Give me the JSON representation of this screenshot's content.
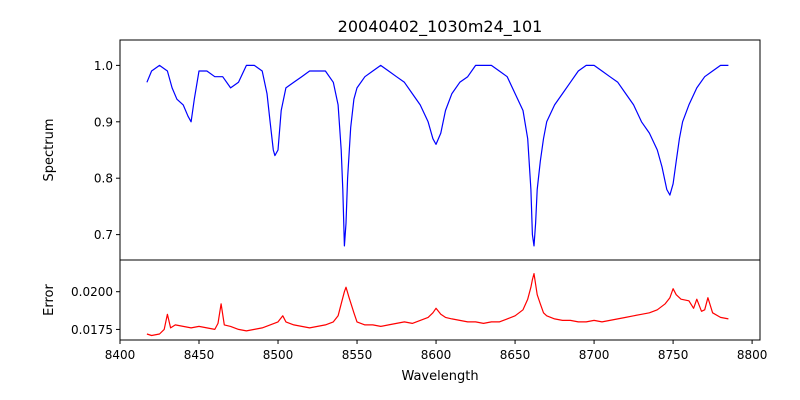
{
  "chart_data": [
    {
      "type": "line",
      "title": "20040402_1030m24_101",
      "xlabel": "",
      "ylabel": "Spectrum",
      "xlim": [
        8400,
        8805
      ],
      "ylim": [
        0.655,
        1.045
      ],
      "yticks": [
        0.7,
        0.8,
        0.9,
        1.0
      ],
      "ytick_labels": [
        "0.7",
        "0.8",
        "0.9",
        "1.0"
      ],
      "grid": false,
      "series": [
        {
          "color": "#0000ff",
          "x": [
            8417,
            8420,
            8425,
            8430,
            8433,
            8436,
            8440,
            8443,
            8445,
            8447,
            8450,
            8455,
            8460,
            8465,
            8470,
            8475,
            8480,
            8485,
            8490,
            8493,
            8495,
            8497,
            8498,
            8500,
            8502,
            8505,
            8510,
            8515,
            8520,
            8525,
            8530,
            8535,
            8538,
            8540,
            8541,
            8542,
            8543,
            8544,
            8546,
            8548,
            8550,
            8555,
            8560,
            8565,
            8570,
            8575,
            8580,
            8585,
            8590,
            8595,
            8598,
            8600,
            8603,
            8606,
            8610,
            8615,
            8620,
            8625,
            8630,
            8635,
            8640,
            8645,
            8650,
            8655,
            8658,
            8660,
            8661,
            8662,
            8663,
            8664,
            8666,
            8668,
            8670,
            8675,
            8680,
            8685,
            8690,
            8695,
            8700,
            8705,
            8710,
            8715,
            8720,
            8725,
            8730,
            8735,
            8740,
            8743,
            8746,
            8748,
            8750,
            8752,
            8754,
            8756,
            8760,
            8765,
            8770,
            8775,
            8780,
            8785
          ],
          "values": [
            0.97,
            0.99,
            1.0,
            0.99,
            0.96,
            0.94,
            0.93,
            0.91,
            0.9,
            0.94,
            0.99,
            0.99,
            0.98,
            0.98,
            0.96,
            0.97,
            1.0,
            1.0,
            0.99,
            0.95,
            0.9,
            0.85,
            0.84,
            0.85,
            0.92,
            0.96,
            0.97,
            0.98,
            0.99,
            0.99,
            0.99,
            0.97,
            0.93,
            0.85,
            0.78,
            0.68,
            0.72,
            0.8,
            0.89,
            0.94,
            0.96,
            0.98,
            0.99,
            1.0,
            0.99,
            0.98,
            0.97,
            0.95,
            0.93,
            0.9,
            0.87,
            0.86,
            0.88,
            0.92,
            0.95,
            0.97,
            0.98,
            1.0,
            1.0,
            1.0,
            0.99,
            0.98,
            0.95,
            0.92,
            0.87,
            0.78,
            0.7,
            0.68,
            0.72,
            0.78,
            0.83,
            0.87,
            0.9,
            0.93,
            0.95,
            0.97,
            0.99,
            1.0,
            1.0,
            0.99,
            0.98,
            0.97,
            0.95,
            0.93,
            0.9,
            0.88,
            0.85,
            0.82,
            0.78,
            0.77,
            0.79,
            0.83,
            0.87,
            0.9,
            0.93,
            0.96,
            0.98,
            0.99,
            1.0,
            1.0
          ]
        }
      ]
    },
    {
      "type": "line",
      "title": "",
      "xlabel": "Wavelength",
      "ylabel": "Error",
      "xlim": [
        8400,
        8805
      ],
      "ylim": [
        0.0168,
        0.0221
      ],
      "xticks": [
        8400,
        8450,
        8500,
        8550,
        8600,
        8650,
        8700,
        8750,
        8800
      ],
      "xtick_labels": [
        "8400",
        "8450",
        "8500",
        "8550",
        "8600",
        "8650",
        "8700",
        "8750",
        "8800"
      ],
      "yticks": [
        0.0175,
        0.02
      ],
      "ytick_labels": [
        "0.0175",
        "0.0200"
      ],
      "grid": false,
      "series": [
        {
          "color": "#ff0000",
          "x": [
            8417,
            8420,
            8425,
            8428,
            8430,
            8432,
            8435,
            8440,
            8445,
            8450,
            8455,
            8460,
            8462,
            8464,
            8466,
            8470,
            8475,
            8480,
            8485,
            8490,
            8495,
            8500,
            8503,
            8505,
            8510,
            8515,
            8520,
            8525,
            8530,
            8535,
            8538,
            8540,
            8542,
            8543,
            8545,
            8548,
            8550,
            8555,
            8560,
            8565,
            8570,
            8575,
            8580,
            8585,
            8590,
            8595,
            8598,
            8600,
            8603,
            8606,
            8610,
            8615,
            8620,
            8625,
            8630,
            8635,
            8640,
            8645,
            8650,
            8655,
            8658,
            8660,
            8661,
            8662,
            8663,
            8664,
            8666,
            8668,
            8670,
            8675,
            8680,
            8685,
            8690,
            8695,
            8700,
            8705,
            8710,
            8715,
            8720,
            8725,
            8730,
            8735,
            8740,
            8745,
            8748,
            8750,
            8752,
            8755,
            8760,
            8763,
            8765,
            8768,
            8770,
            8772,
            8775,
            8780,
            8785
          ],
          "values": [
            0.0172,
            0.0171,
            0.0172,
            0.0175,
            0.0185,
            0.0176,
            0.0178,
            0.0177,
            0.0176,
            0.0177,
            0.0176,
            0.0175,
            0.0179,
            0.0192,
            0.0178,
            0.0177,
            0.0175,
            0.0174,
            0.0175,
            0.0176,
            0.0178,
            0.018,
            0.0184,
            0.018,
            0.0178,
            0.0177,
            0.0176,
            0.0177,
            0.0178,
            0.018,
            0.0184,
            0.0192,
            0.02,
            0.0203,
            0.0196,
            0.0186,
            0.018,
            0.0178,
            0.0178,
            0.0177,
            0.0178,
            0.0179,
            0.018,
            0.0179,
            0.0181,
            0.0183,
            0.0186,
            0.0189,
            0.0185,
            0.0183,
            0.0182,
            0.0181,
            0.018,
            0.018,
            0.0179,
            0.018,
            0.018,
            0.0182,
            0.0184,
            0.0188,
            0.0195,
            0.0203,
            0.0208,
            0.0212,
            0.0205,
            0.0198,
            0.0192,
            0.0186,
            0.0184,
            0.0182,
            0.0181,
            0.0181,
            0.018,
            0.018,
            0.0181,
            0.018,
            0.0181,
            0.0182,
            0.0183,
            0.0184,
            0.0185,
            0.0186,
            0.0188,
            0.0192,
            0.0196,
            0.0202,
            0.0198,
            0.0195,
            0.0194,
            0.0189,
            0.0195,
            0.0187,
            0.0188,
            0.0196,
            0.0186,
            0.0183,
            0.0182
          ]
        }
      ]
    }
  ]
}
